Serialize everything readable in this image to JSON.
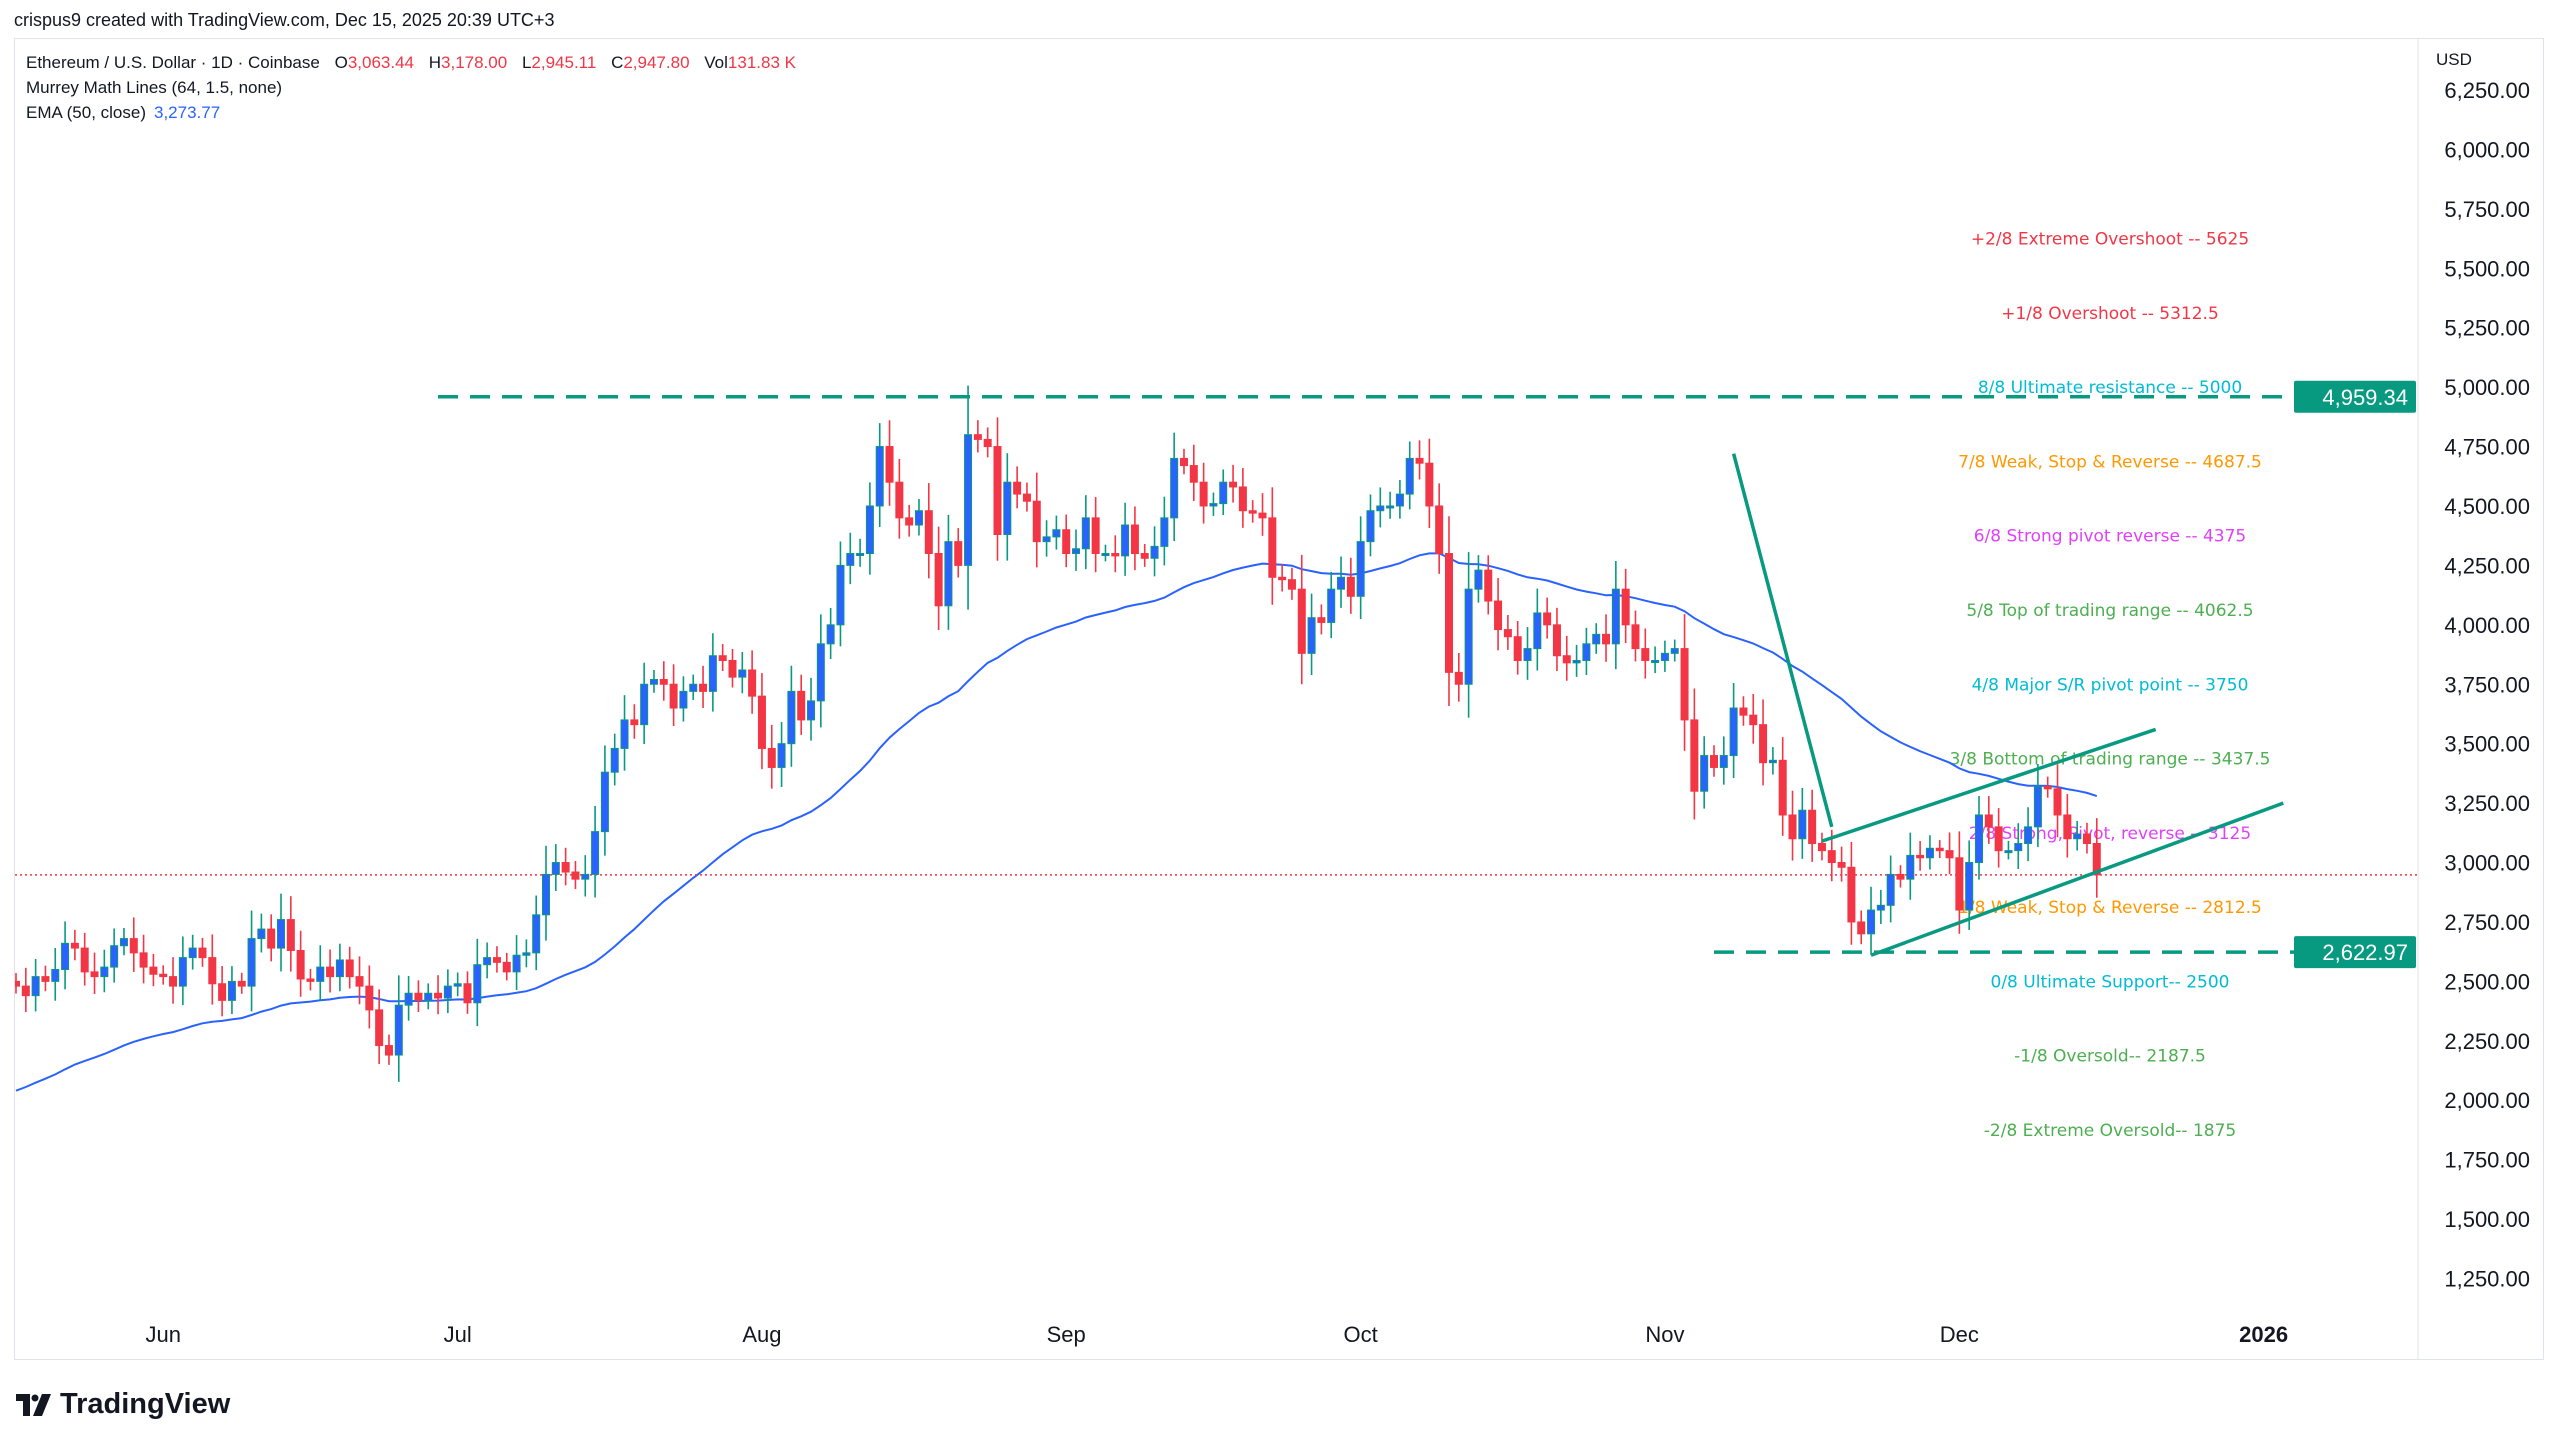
{
  "credit": "crispus9 created with TradingView.com, Dec 15, 2025 20:39 UTC+3",
  "legend": {
    "symbol": "Ethereum / U.S. Dollar · 1D · Coinbase",
    "o_label": "O",
    "o": "3,063.44",
    "h_label": "H",
    "h": "3,178.00",
    "l_label": "L",
    "l": "2,945.11",
    "c_label": "C",
    "c": "2,947.80",
    "vol_label": "Vol",
    "vol": "131.83 K",
    "murrey": "Murrey Math Lines (64, 1.5, none)",
    "ema_label": "EMA (50, close)",
    "ema_value": "3,273.77"
  },
  "currency": "USD",
  "brand": "TradingView",
  "colors": {
    "up_body": "#2962ff",
    "up_border": "#089981",
    "down": "#f23645",
    "ema": "#2962ff",
    "trendline": "#089981",
    "last_price_line": "#f23645"
  },
  "chart_data": {
    "type": "candlestick",
    "dates_range": [
      "2025-05-17",
      "2025-12-15"
    ],
    "closes": [
      2480,
      2440,
      2520,
      2500,
      2550,
      2660,
      2640,
      2540,
      2520,
      2560,
      2650,
      2680,
      2620,
      2560,
      2530,
      2520,
      2480,
      2600,
      2640,
      2600,
      2490,
      2420,
      2500,
      2480,
      2680,
      2720,
      2640,
      2760,
      2630,
      2510,
      2500,
      2560,
      2520,
      2590,
      2520,
      2480,
      2380,
      2230,
      2190,
      2400,
      2450,
      2420,
      2450,
      2430,
      2480,
      2490,
      2410,
      2570,
      2600,
      2580,
      2540,
      2610,
      2620,
      2780,
      2950,
      3000,
      2960,
      2930,
      2950,
      3130,
      3380,
      3480,
      3600,
      3580,
      3750,
      3770,
      3750,
      3650,
      3720,
      3750,
      3720,
      3870,
      3850,
      3780,
      3810,
      3700,
      3480,
      3400,
      3500,
      3720,
      3600,
      3680,
      3920,
      4000,
      4250,
      4300,
      4300,
      4500,
      4750,
      4600,
      4450,
      4420,
      4480,
      4300,
      4080,
      4350,
      4250,
      4800,
      4780,
      4750,
      4380,
      4600,
      4550,
      4520,
      4350,
      4370,
      4400,
      4300,
      4320,
      4450,
      4300,
      4300,
      4290,
      4420,
      4300,
      4280,
      4330,
      4450,
      4700,
      4670,
      4600,
      4500,
      4510,
      4600,
      4580,
      4480,
      4470,
      4450,
      4200,
      4190,
      4150,
      3880,
      4030,
      4010,
      4150,
      4200,
      4120,
      4350,
      4480,
      4500,
      4500,
      4550,
      4700,
      4680,
      4500,
      4300,
      3800,
      3750,
      4150,
      4230,
      4100,
      3980,
      3950,
      3850,
      3900,
      4050,
      4000,
      3870,
      3840,
      3850,
      3920,
      3960,
      3920,
      4150,
      4000,
      3900,
      3850,
      3850,
      3880,
      3900,
      3600,
      3300,
      3450,
      3400,
      3450,
      3650,
      3620,
      3580,
      3420,
      3430,
      3200,
      3100,
      3220,
      3080,
      3050,
      3000,
      2980,
      2750,
      2700,
      2800,
      2820,
      2950,
      2930,
      3030,
      3020,
      3060,
      3050,
      3020,
      2800,
      3000,
      3200,
      3150,
      3050,
      3050,
      3080,
      3150,
      3320,
      3310,
      3200,
      3100,
      3120,
      3080,
      2948
    ],
    "ema_period": 50,
    "y_ticks": [
      "6,250.00",
      "6,000.00",
      "5,750.00",
      "5,500.00",
      "5,250.00",
      "5,000.00",
      "4,750.00",
      "4,500.00",
      "4,250.00",
      "4,000.00",
      "3,750.00",
      "3,500.00",
      "3,250.00",
      "3,000.00",
      "2,750.00",
      "2,500.00",
      "2,250.00",
      "2,000.00",
      "1,750.00",
      "1,500.00",
      "1,250.00"
    ],
    "ylim": [
      1250,
      6250
    ],
    "x_ticks": [
      {
        "label": "Jun",
        "date": "2025-06-01"
      },
      {
        "label": "Jul",
        "date": "2025-07-01"
      },
      {
        "label": "Aug",
        "date": "2025-08-01"
      },
      {
        "label": "Sep",
        "date": "2025-09-01"
      },
      {
        "label": "Oct",
        "date": "2025-10-01"
      },
      {
        "label": "Nov",
        "date": "2025-11-01"
      },
      {
        "label": "Dec",
        "date": "2025-12-01"
      },
      {
        "label": "2026",
        "date": "2026-01-01",
        "bold": true
      }
    ],
    "murrey_levels": [
      {
        "text": "+2/8 Extreme Overshoot --  5625",
        "value": 5625,
        "color": "#f23645"
      },
      {
        "text": "+1/8 Overshoot --  5312.5",
        "value": 5312.5,
        "color": "#f23645"
      },
      {
        "text": "8/8 Ultimate resistance --  5000",
        "value": 5000,
        "color": "#00bcd4"
      },
      {
        "text": "7/8 Weak, Stop & Reverse --  4687.5",
        "value": 4687.5,
        "color": "#ff9800"
      },
      {
        "text": "6/8 Strong pivot reverse --  4375",
        "value": 4375,
        "color": "#e040fb"
      },
      {
        "text": "5/8 Top of trading range --  4062.5",
        "value": 4062.5,
        "color": "#4caf50"
      },
      {
        "text": "4/8 Major S/R pivot point --  3750",
        "value": 3750,
        "color": "#00bcd4"
      },
      {
        "text": "3/8 Bottom of trading range --  3437.5",
        "value": 3437.5,
        "color": "#4caf50"
      },
      {
        "text": "2/8 Strong, Pivot, reverse --  3125",
        "value": 3125,
        "color": "#e040fb"
      },
      {
        "text": "1/8 Weak, Stop & Reverse --  2812.5",
        "value": 2812.5,
        "color": "#ff9800"
      },
      {
        "text": "0/8 Ultimate Support--  2500",
        "value": 2500,
        "color": "#00bcd4"
      },
      {
        "text": "-1/8 Oversold--  2187.5",
        "value": 2187.5,
        "color": "#4caf50"
      },
      {
        "text": "-2/8 Extreme Oversold--  1875",
        "value": 1875,
        "color": "#4caf50"
      }
    ],
    "horizontal_lines": [
      {
        "value": 4959.34,
        "label": "4,959.34",
        "from_date": "2025-06-29"
      },
      {
        "value": 2622.97,
        "label": "2,622.97",
        "from_date": "2025-11-06"
      }
    ],
    "trendlines": [
      {
        "from": {
          "date": "2025-11-08",
          "value": 4720
        },
        "to": {
          "date": "2025-11-18",
          "value": 3150
        }
      },
      {
        "from": {
          "date": "2025-11-17",
          "value": 3090
        },
        "to": {
          "date": "2025-12-21",
          "value": 3560
        }
      },
      {
        "from": {
          "date": "2025-11-22",
          "value": 2610
        },
        "to": {
          "date": "2026-01-03",
          "value": 3250
        }
      }
    ],
    "last_price": 2947.8
  }
}
